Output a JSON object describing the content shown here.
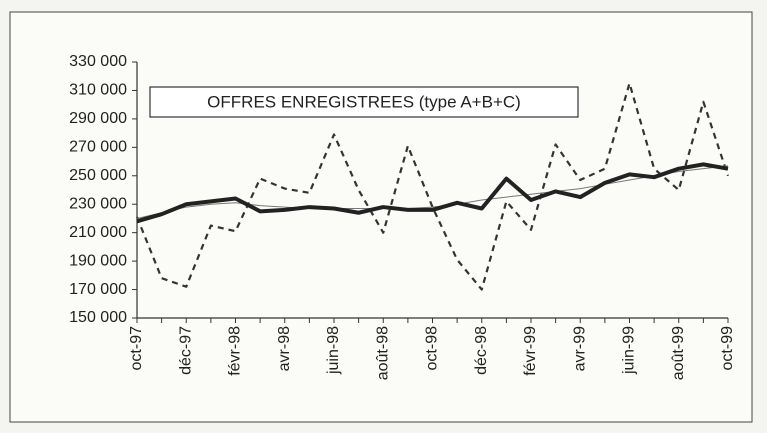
{
  "chart_data": {
    "type": "line",
    "title": "OFFRES ENREGISTREES (type A+B+C)",
    "categories": [
      "oct-97",
      null,
      "déc-97",
      null,
      "févr-98",
      null,
      "avr-98",
      null,
      "juin-98",
      null,
      "août-98",
      null,
      "oct-98",
      null,
      "déc-98",
      null,
      "févr-99",
      null,
      "avr-99",
      null,
      "juin-99",
      null,
      "août-99",
      null,
      "oct-99"
    ],
    "series": [
      {
        "color": "#333333",
        "style": "dashed",
        "width": 2.2,
        "values": [
          221000,
          178000,
          172000,
          215000,
          211000,
          248000,
          241000,
          238000,
          279000,
          240000,
          210000,
          271000,
          228000,
          191000,
          170000,
          232000,
          212000,
          272000,
          247000,
          255000,
          315000,
          255000,
          240000,
          302000,
          250000
        ]
      },
      {
        "color": "#777777",
        "style": "solid",
        "width": 1,
        "values": [
          220000,
          224000,
          228000,
          230000,
          231000,
          229000,
          228000,
          227000,
          227000,
          227000,
          227000,
          227000,
          228000,
          230000,
          233000,
          235000,
          237000,
          239000,
          241000,
          244000,
          247000,
          250000,
          253000,
          255000,
          257000
        ]
      },
      {
        "color": "#222222",
        "style": "solid",
        "width": 4,
        "values": [
          218000,
          223000,
          230000,
          232000,
          234000,
          225000,
          226000,
          228000,
          227000,
          224000,
          228000,
          226000,
          226000,
          231000,
          227000,
          248000,
          233000,
          239000,
          235000,
          245000,
          251000,
          249000,
          255000,
          258000,
          255000
        ]
      }
    ],
    "ylim": [
      150000,
      330000
    ],
    "yticks": [
      {
        "value": 150000,
        "label": "150 000"
      },
      {
        "value": 170000,
        "label": "170 000"
      },
      {
        "value": 190000,
        "label": "190 000"
      },
      {
        "value": 210000,
        "label": "210 000"
      },
      {
        "value": 230000,
        "label": "230 000"
      },
      {
        "value": 250000,
        "label": "250 000"
      },
      {
        "value": 270000,
        "label": "270 000"
      },
      {
        "value": 290000,
        "label": "290 000"
      },
      {
        "value": 310000,
        "label": "310 000"
      },
      {
        "value": 330000,
        "label": "330 000"
      }
    ],
    "grid": false
  }
}
